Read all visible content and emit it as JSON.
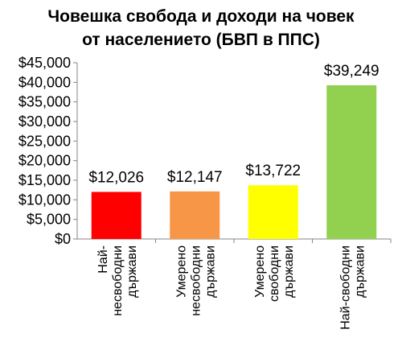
{
  "chart_data": {
    "type": "bar",
    "title_lines": [
      "Човешка свобода и доходи на човек",
      "от населението (БВП в ППС)"
    ],
    "categories": [
      [
        "Най-",
        "несвободни",
        "държави"
      ],
      [
        "Умерено",
        "несвободни",
        "държави"
      ],
      [
        "Умерено",
        "свободни",
        "държави"
      ],
      [
        "Най-свободни",
        "държави"
      ]
    ],
    "values": [
      12026,
      12147,
      13722,
      39249
    ],
    "data_labels": [
      "$12,026",
      "$12,147",
      "$13,722",
      "$39,249"
    ],
    "colors": [
      "#ff0000",
      "#f79646",
      "#ffff00",
      "#92d050"
    ],
    "yticks": [
      "$0",
      "$5,000",
      "$10,000",
      "$15,000",
      "$20,000",
      "$25,000",
      "$30,000",
      "$35,000",
      "$40,000",
      "$45,000"
    ],
    "ylim": [
      0,
      45000
    ],
    "grid": false,
    "legend": "none"
  }
}
